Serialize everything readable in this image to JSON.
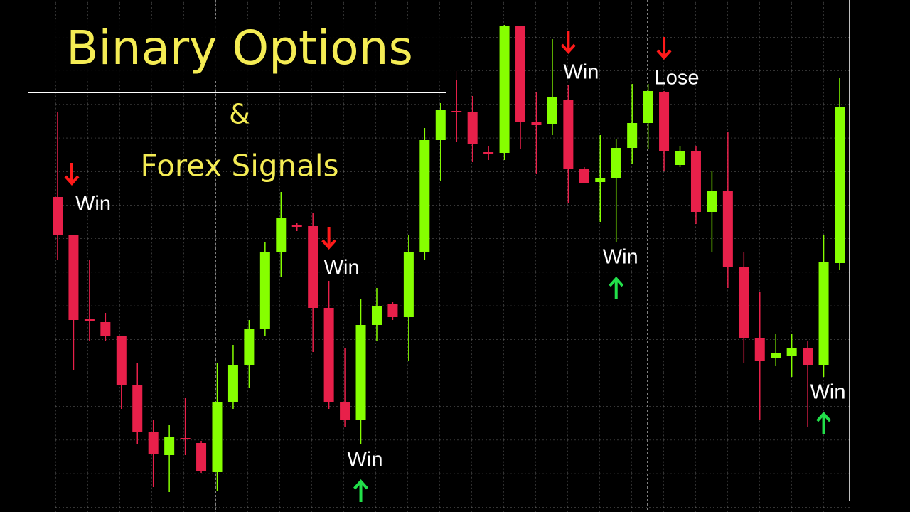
{
  "chart_data": {
    "type": "candlestick",
    "title": "Binary Options",
    "subtitle_symbol": "&",
    "subtitle": "Forex Signals",
    "ylim": [
      0,
      720
    ],
    "up_color": "#86ff00",
    "down_color": "#e8204a",
    "open": [
      443,
      390,
      271,
      267,
      248,
      178,
      112,
      80,
      104,
      97,
      56,
      154,
      207,
      257,
      365,
      403,
      402,
      287,
      155,
      130,
      263,
      292,
      274,
      365,
      523,
      564,
      562,
      506,
      505,
      683,
      549,
      546,
      580,
      482,
      464,
      470,
      512,
      547,
      590,
      488,
      508,
      422,
      452,
      345,
      244,
      217,
      220,
      230,
      207,
      350
    ],
    "high": [
      562,
      390,
      355,
      280,
      248,
      210,
      130,
      122,
      160,
      100,
      210,
      235,
      270,
      380,
      450,
      407,
      420,
      325,
      230,
      300,
      315,
      295,
      390,
      540,
      575,
      620,
      585,
      515,
      685,
      683,
      590,
      665,
      600,
      485,
      530,
      525,
      602,
      602,
      592,
      515,
      515,
      480,
      535,
      365,
      310,
      250,
      250,
      240,
      390,
      610
    ],
    "low": [
      355,
      200,
      240,
      240,
      145,
      95,
      35,
      28,
      80,
      55,
      30,
      145,
      175,
      248,
      330,
      395,
      225,
      145,
      120,
      95,
      240,
      270,
      212,
      355,
      465,
      520,
      492,
      495,
      495,
      510,
      475,
      530,
      435,
      462,
      408,
      380,
      490,
      510,
      480,
      485,
      405,
      365,
      315,
      210,
      130,
      205,
      190,
      120,
      190,
      340
    ],
    "close": [
      390,
      270,
      270,
      248,
      178,
      112,
      82,
      105,
      103,
      57,
      154,
      207,
      258,
      365,
      413,
      402,
      287,
      155,
      130,
      263,
      290,
      274,
      365,
      523,
      565,
      563,
      518,
      505,
      683,
      548,
      544,
      583,
      482,
      463,
      470,
      512,
      547,
      592,
      508,
      508,
      422,
      452,
      345,
      244,
      213,
      223,
      230,
      207,
      352,
      570
    ],
    "signals": [
      {
        "label": "Win",
        "direction": "down"
      },
      null,
      null,
      null,
      null,
      null,
      null,
      null,
      null,
      null,
      null,
      null,
      null,
      null,
      null,
      null,
      null,
      {
        "label": "Win",
        "direction": "down"
      },
      null,
      {
        "label": "Win",
        "direction": "up"
      },
      null,
      null,
      null,
      null,
      null,
      null,
      null,
      null,
      null,
      null,
      null,
      null,
      {
        "label": "Win",
        "direction": "down"
      },
      null,
      null,
      {
        "label": "Win",
        "direction": "up"
      },
      null,
      null,
      {
        "label": "Lose",
        "direction": "down"
      },
      null,
      null,
      null,
      null,
      null,
      null,
      null,
      null,
      null,
      {
        "label": "Win",
        "direction": "up"
      },
      null
    ]
  }
}
